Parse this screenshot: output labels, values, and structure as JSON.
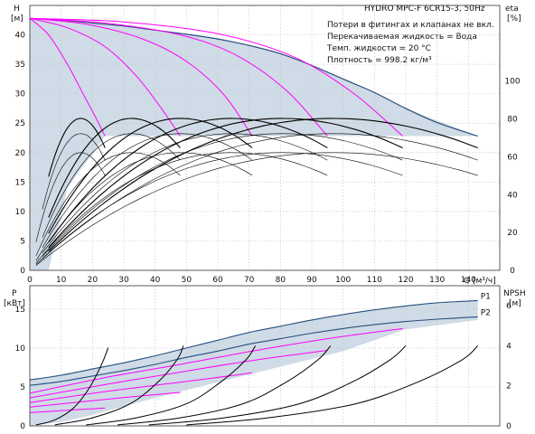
{
  "header": {
    "title": "HYDRO MPC-F 6CR15-3, 50Hz",
    "notes": [
      "Потери в фитингах и клапанах не вкл.",
      "Перекачиваемая жидкость = Вода",
      "Темп. жидкости = 20 °C",
      "Плотность = 998.2 кг/м³"
    ]
  },
  "colors": {
    "envelope_fill": "#cfdbe6",
    "max_curve": "#274f7d",
    "speed_curves": "#ff00ff",
    "efficiency_curves": "#000000",
    "grid": "#c9c9c9"
  },
  "chart_data": [
    {
      "type": "line",
      "name": "qh",
      "ylabel_top": "H",
      "ylabel_unit": "[м]",
      "y2label_top": "eta",
      "y2label_unit": "[%]",
      "xlabel": "Q [м³/ч]",
      "xlim": [
        0,
        150
      ],
      "ylim": [
        0,
        45
      ],
      "y2lim": [
        0,
        140
      ],
      "xticks": [
        0,
        10,
        20,
        30,
        40,
        50,
        60,
        70,
        80,
        90,
        100,
        110,
        120,
        130,
        140
      ],
      "yticks": [
        0,
        5,
        10,
        15,
        20,
        25,
        30,
        35,
        40
      ],
      "y2ticks": [
        0,
        20,
        40,
        60,
        80,
        100
      ],
      "envelope": [
        [
          0,
          42.8
        ],
        [
          20,
          42
        ],
        [
          40,
          40.8
        ],
        [
          60,
          39.3
        ],
        [
          80,
          36.8
        ],
        [
          100,
          32.5
        ],
        [
          120,
          27.5
        ],
        [
          143,
          22.8
        ],
        [
          143,
          22.8
        ],
        [
          0,
          22.8
        ],
        [
          0,
          0
        ],
        [
          6,
          0
        ],
        [
          12,
          14
        ],
        [
          24,
          22.8
        ],
        [
          0,
          22.8
        ]
      ],
      "series": [
        {
          "kind": "max",
          "points": [
            [
              0,
              42.8
            ],
            [
              10,
              42.5
            ],
            [
              20,
              42
            ],
            [
              30,
              41.5
            ],
            [
              40,
              40.8
            ],
            [
              50,
              40.1
            ],
            [
              60,
              39.3
            ],
            [
              70,
              38.2
            ],
            [
              80,
              36.8
            ],
            [
              90,
              34.8
            ],
            [
              100,
              32.5
            ],
            [
              110,
              30.2
            ],
            [
              120,
              27.5
            ],
            [
              130,
              25.1
            ],
            [
              143,
              22.8
            ]
          ]
        },
        {
          "kind": "speed",
          "points": [
            [
              0,
              42.8
            ],
            [
              6,
              40
            ],
            [
              12,
              35
            ],
            [
              17,
              30
            ],
            [
              21,
              26
            ],
            [
              24,
              22.8
            ]
          ]
        },
        {
          "kind": "speed",
          "points": [
            [
              0,
              42.8
            ],
            [
              12,
              41.2
            ],
            [
              24,
              38
            ],
            [
              34,
              33
            ],
            [
              42,
              27.5
            ],
            [
              48,
              22.8
            ]
          ]
        },
        {
          "kind": "speed",
          "points": [
            [
              0,
              42.8
            ],
            [
              18,
              41.8
            ],
            [
              36,
              39.3
            ],
            [
              50,
              35.5
            ],
            [
              62,
              29.8
            ],
            [
              71,
              22.8
            ]
          ]
        },
        {
          "kind": "speed",
          "points": [
            [
              0,
              42.8
            ],
            [
              24,
              42
            ],
            [
              48,
              40
            ],
            [
              66,
              36.5
            ],
            [
              82,
              30.5
            ],
            [
              95,
              22.8
            ]
          ]
        },
        {
          "kind": "speed",
          "points": [
            [
              0,
              42.8
            ],
            [
              30,
              42.2
            ],
            [
              60,
              40.2
            ],
            [
              84,
              36.3
            ],
            [
              103,
              30.2
            ],
            [
              119,
              22.8
            ]
          ]
        },
        {
          "kind": "eff",
          "scale": 24,
          "peak": 62,
          "offset": 2
        },
        {
          "kind": "eff",
          "scale": 48,
          "peak": 62,
          "offset": 2
        },
        {
          "kind": "eff",
          "scale": 71,
          "peak": 62,
          "offset": 2
        },
        {
          "kind": "eff",
          "scale": 95,
          "peak": 62,
          "offset": 2
        },
        {
          "kind": "eff",
          "scale": 119,
          "peak": 62,
          "offset": 2
        },
        {
          "kind": "eff",
          "scale": 143,
          "peak": 62,
          "offset": 2
        },
        {
          "kind": "eff",
          "scale": 24,
          "peak": 72,
          "offset": 4
        },
        {
          "kind": "eff",
          "scale": 48,
          "peak": 72,
          "offset": 4
        },
        {
          "kind": "eff",
          "scale": 71,
          "peak": 72,
          "offset": 4
        },
        {
          "kind": "eff",
          "scale": 95,
          "peak": 72,
          "offset": 4
        },
        {
          "kind": "eff",
          "scale": 119,
          "peak": 72,
          "offset": 4
        },
        {
          "kind": "eff",
          "scale": 143,
          "peak": 72,
          "offset": 4
        },
        {
          "kind": "eff",
          "scale": 24,
          "peak": 80,
          "offset": 6
        },
        {
          "kind": "eff",
          "scale": 48,
          "peak": 80,
          "offset": 6
        },
        {
          "kind": "eff",
          "scale": 71,
          "peak": 80,
          "offset": 6
        },
        {
          "kind": "eff",
          "scale": 95,
          "peak": 80,
          "offset": 6
        },
        {
          "kind": "eff",
          "scale": 119,
          "peak": 80,
          "offset": 6
        },
        {
          "kind": "eff",
          "scale": 143,
          "peak": 80,
          "offset": 6
        }
      ]
    },
    {
      "type": "line",
      "name": "power",
      "ylabel_top": "P",
      "ylabel_unit": "[кВт]",
      "y2label_top": "NPSH",
      "y2label_unit": "[м]",
      "xlim": [
        0,
        150
      ],
      "ylim": [
        0,
        18
      ],
      "y2lim": [
        0,
        7
      ],
      "yticks": [
        0,
        5,
        10,
        15
      ],
      "y2ticks": [
        0,
        2,
        4,
        6
      ],
      "envelope": [
        [
          0,
          5.9
        ],
        [
          20,
          7.3
        ],
        [
          40,
          9
        ],
        [
          60,
          11
        ],
        [
          80,
          12.8
        ],
        [
          100,
          14.3
        ],
        [
          120,
          15.4
        ],
        [
          143,
          16.1
        ],
        [
          143,
          13.6
        ],
        [
          120,
          12.4
        ],
        [
          100,
          9.6
        ],
        [
          80,
          7.6
        ],
        [
          60,
          5.6
        ],
        [
          40,
          3.6
        ],
        [
          20,
          1.4
        ],
        [
          10,
          0.5
        ],
        [
          0,
          0
        ]
      ],
      "series": [
        {
          "kind": "p1",
          "label": "P1",
          "points": [
            [
              0,
              5.9
            ],
            [
              10,
              6.5
            ],
            [
              20,
              7.3
            ],
            [
              30,
              8.1
            ],
            [
              40,
              9
            ],
            [
              50,
              10
            ],
            [
              60,
              11
            ],
            [
              70,
              12
            ],
            [
              80,
              12.8
            ],
            [
              90,
              13.6
            ],
            [
              100,
              14.3
            ],
            [
              110,
              14.9
            ],
            [
              120,
              15.4
            ],
            [
              130,
              15.8
            ],
            [
              143,
              16.1
            ]
          ]
        },
        {
          "kind": "p2",
          "label": "P2",
          "points": [
            [
              0,
              5.2
            ],
            [
              10,
              5.7
            ],
            [
              20,
              6.4
            ],
            [
              30,
              7.1
            ],
            [
              40,
              7.9
            ],
            [
              50,
              8.8
            ],
            [
              60,
              9.6
            ],
            [
              70,
              10.5
            ],
            [
              80,
              11.2
            ],
            [
              90,
              11.9
            ],
            [
              100,
              12.5
            ],
            [
              110,
              13
            ],
            [
              120,
              13.4
            ],
            [
              130,
              13.7
            ],
            [
              143,
              14
            ]
          ]
        },
        {
          "kind": "speed",
          "points": [
            [
              0,
              4.2
            ],
            [
              24,
              6.2
            ],
            [
              48,
              7.9
            ],
            [
              71,
              9.6
            ],
            [
              95,
              11.2
            ],
            [
              119,
              12.5
            ]
          ]
        },
        {
          "kind": "speed",
          "points": [
            [
              0,
              3.6
            ],
            [
              24,
              5.3
            ],
            [
              48,
              6.9
            ],
            [
              71,
              8.4
            ],
            [
              95,
              9.7
            ]
          ]
        },
        {
          "kind": "speed",
          "points": [
            [
              0,
              3
            ],
            [
              24,
              4.4
            ],
            [
              48,
              5.6
            ],
            [
              71,
              6.8
            ]
          ]
        },
        {
          "kind": "speed",
          "points": [
            [
              0,
              2.4
            ],
            [
              24,
              3.4
            ],
            [
              48,
              4.3
            ]
          ]
        },
        {
          "kind": "speed",
          "points": [
            [
              0,
              1.7
            ],
            [
              24,
              2.3
            ]
          ]
        },
        {
          "kind": "npsh",
          "points": [
            [
              2,
              0.05
            ],
            [
              8,
              0.3
            ],
            [
              14,
              0.9
            ],
            [
              19,
              1.9
            ],
            [
              23,
              3.1
            ],
            [
              25,
              3.9
            ]
          ]
        },
        {
          "kind": "npsh",
          "points": [
            [
              8,
              0.05
            ],
            [
              20,
              0.4
            ],
            [
              32,
              1.1
            ],
            [
              41,
              2.2
            ],
            [
              47,
              3.3
            ],
            [
              49,
              4.0
            ]
          ]
        },
        {
          "kind": "npsh",
          "points": [
            [
              18,
              0.05
            ],
            [
              34,
              0.4
            ],
            [
              50,
              1.1
            ],
            [
              61,
              2.2
            ],
            [
              69,
              3.3
            ],
            [
              72,
              4.0
            ]
          ]
        },
        {
          "kind": "npsh",
          "points": [
            [
              28,
              0.05
            ],
            [
              48,
              0.4
            ],
            [
              68,
              1.1
            ],
            [
              82,
              2.2
            ],
            [
              92,
              3.3
            ],
            [
              96,
              4.0
            ]
          ]
        },
        {
          "kind": "npsh",
          "points": [
            [
              38,
              0.05
            ],
            [
              62,
              0.4
            ],
            [
              86,
              1.1
            ],
            [
              103,
              2.2
            ],
            [
              115,
              3.3
            ],
            [
              120,
              4.0
            ]
          ]
        },
        {
          "kind": "npsh",
          "points": [
            [
              50,
              0.05
            ],
            [
              76,
              0.4
            ],
            [
              104,
              1.1
            ],
            [
              124,
              2.2
            ],
            [
              138,
              3.3
            ],
            [
              143,
              4.0
            ]
          ]
        }
      ]
    }
  ]
}
